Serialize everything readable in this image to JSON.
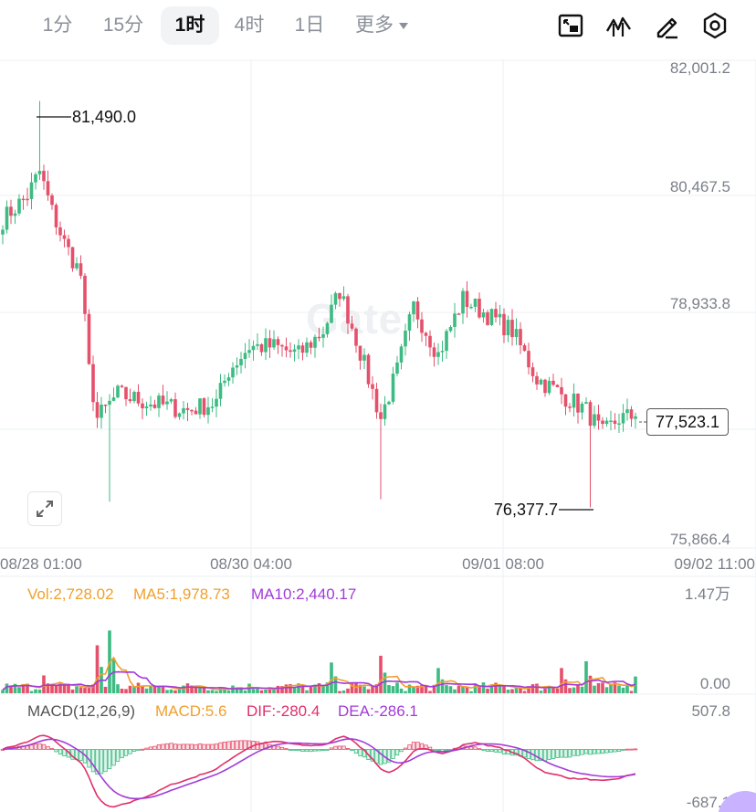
{
  "toolbar": {
    "timeframes": [
      "1分",
      "15分",
      "1时",
      "4时",
      "1日",
      "更多"
    ],
    "active_timeframe": "1时",
    "tools": [
      "chart-layout-icon",
      "indicator-icon",
      "draw-pen-icon",
      "settings-hex-icon"
    ]
  },
  "watermark": "Gate",
  "price_axis": [
    "82,001.2",
    "80,467.5",
    "78,933.8",
    "77,523.1",
    "75,866.4"
  ],
  "current_price": "77,523.1",
  "high_label": "81,490.0",
  "low_label": "76,377.7",
  "time_axis": [
    "08/28 01:00",
    "08/30 04:00",
    "09/01 08:00",
    "09/02 11:00"
  ],
  "volume_legend": {
    "vol": "Vol:2,728.02",
    "ma5": "MA5:1,978.73",
    "ma10": "MA10:2,440.17"
  },
  "volume_axis": [
    "1.47万",
    "0.00"
  ],
  "macd_legend": {
    "name": "MACD(12,26,9)",
    "macd": "MACD:5.6",
    "dif": "DIF:-280.4",
    "dea": "DEA:-286.1"
  },
  "macd_axis": [
    "507.8",
    "-687.1"
  ],
  "colors": {
    "up": "#3dbb82",
    "down": "#e5506a",
    "ma5": "#f0a02c",
    "ma10": "#a23bd8",
    "dif": "#e0306a",
    "dea": "#a23bd8",
    "grid": "#eeeff2"
  },
  "chart_data": {
    "type": "candlestick",
    "title": "",
    "ylim": [
      75866.4,
      82001.2
    ],
    "y_ticks": [
      82001.2,
      80467.5,
      78933.8,
      75866.4
    ],
    "current_price": 77523.1,
    "high": 81490.0,
    "low": 76377.7,
    "x_ticks": [
      "08/28 01:00",
      "08/30 04:00",
      "09/01 08:00",
      "09/02 11:00"
    ],
    "close_path": [
      [
        0,
        80000
      ],
      [
        6,
        80300
      ],
      [
        9,
        80600
      ],
      [
        12,
        80100
      ],
      [
        15,
        79700
      ],
      [
        19,
        79300
      ],
      [
        21,
        78100
      ],
      [
        23,
        77500
      ],
      [
        28,
        77800
      ],
      [
        35,
        77700
      ],
      [
        45,
        77600
      ],
      [
        52,
        77700
      ],
      [
        55,
        78100
      ],
      [
        60,
        78400
      ],
      [
        66,
        78400
      ],
      [
        72,
        78300
      ],
      [
        78,
        78600
      ],
      [
        82,
        79100
      ],
      [
        86,
        78500
      ],
      [
        92,
        77500
      ],
      [
        96,
        78100
      ],
      [
        100,
        78900
      ],
      [
        106,
        78300
      ],
      [
        112,
        79000
      ],
      [
        118,
        78800
      ],
      [
        124,
        78600
      ],
      [
        130,
        78000
      ],
      [
        136,
        77800
      ],
      [
        142,
        77600
      ],
      [
        146,
        77300
      ],
      [
        150,
        77500
      ],
      [
        154,
        77523.1
      ]
    ],
    "volume": {
      "ylim": [
        0,
        14700
      ],
      "last": 2728.02,
      "ma5": 1978.73,
      "ma10": 2440.17,
      "spikes": [
        [
          10,
          2900
        ],
        [
          23,
          7800
        ],
        [
          26,
          10200
        ],
        [
          80,
          5000
        ],
        [
          92,
          6100
        ],
        [
          106,
          4100
        ],
        [
          136,
          4100
        ],
        [
          142,
          5200
        ]
      ]
    },
    "macd": {
      "params": [
        12,
        26,
        9
      ],
      "ylim": [
        -687.1,
        507.8
      ],
      "macd": 5.6,
      "dif": -280.4,
      "dea": -286.1
    }
  }
}
